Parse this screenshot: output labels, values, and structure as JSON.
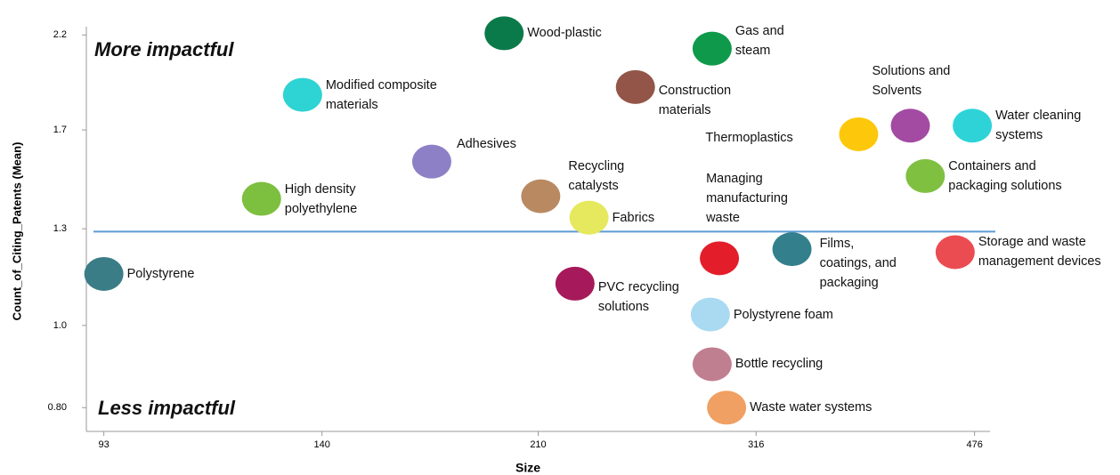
{
  "chart_data": {
    "type": "scatter",
    "xlabel": "Size",
    "ylabel": "Count_of_Citing_Patents (Mean)",
    "annotations": [
      "More impactful",
      "Less impactful"
    ],
    "xscale": "log",
    "yscale": "log",
    "xlim": [
      90,
      490
    ],
    "xticks": [
      93,
      140,
      210,
      316,
      476
    ],
    "ylim": [
      0.75,
      2.25
    ],
    "yticks": [
      {
        "value": 0.8,
        "label": "0.80"
      },
      {
        "value": 1,
        "label": "1.0"
      },
      1.3,
      1.7,
      2.2
    ],
    "reference_line": {
      "value": 1.29,
      "color": "#5b9bd5"
    },
    "points": [
      {
        "label": "Polystyrene",
        "x": 93,
        "y": 1.15,
        "color": "#3a7d86"
      },
      {
        "label": "High density\npolyethylene",
        "x": 125,
        "y": 1.41,
        "color": "#7dbf3f"
      },
      {
        "label": "Modified composite\nmaterials",
        "x": 135,
        "y": 1.87,
        "color": "#2ed3d3"
      },
      {
        "label": "Adhesives",
        "x": 172,
        "y": 1.56,
        "color": "#8e80c6"
      },
      {
        "label": "Wood-plastic",
        "x": 197,
        "y": 2.21,
        "color": "#0b7a4a"
      },
      {
        "label": "Recycling\ncatalysts",
        "x": 211,
        "y": 1.42,
        "color": "#b98a62"
      },
      {
        "label": "Fabrics",
        "x": 231,
        "y": 1.34,
        "color": "#e6e85d"
      },
      {
        "label": "PVC recycling\nsolutions",
        "x": 225,
        "y": 1.12,
        "color": "#a6195a"
      },
      {
        "label": "Construction\nmaterials",
        "x": 252,
        "y": 1.91,
        "color": "#935548"
      },
      {
        "label": "Gas and\nsteam",
        "x": 291,
        "y": 2.12,
        "color": "#0e9a4a"
      },
      {
        "label": "Managing\nmanufacturing\nwaste",
        "x": 295,
        "y": 1.2,
        "color": "#e31e2a"
      },
      {
        "label": "Polystyrene foam",
        "x": 290,
        "y": 1.03,
        "color": "#a9daf2"
      },
      {
        "label": "Bottle recycling",
        "x": 291,
        "y": 0.9,
        "color": "#c07f90"
      },
      {
        "label": "Waste water systems",
        "x": 299,
        "y": 0.8,
        "color": "#f0a062"
      },
      {
        "label": "Films,\ncoatings, and\npackaging",
        "x": 338,
        "y": 1.23,
        "color": "#347f8c"
      },
      {
        "label": "Thermoplastics",
        "x": 383,
        "y": 1.68,
        "color": "#fdc80c"
      },
      {
        "label": "Solutions and\nSolvents",
        "x": 422,
        "y": 1.72,
        "color": "#a34aa3"
      },
      {
        "label": "Water cleaning\nsystems",
        "x": 474,
        "y": 1.72,
        "color": "#2ed3d8"
      },
      {
        "label": "Containers and\npackaging solutions",
        "x": 434,
        "y": 1.5,
        "color": "#80c041"
      },
      {
        "label": "Storage and waste\nmanagement devices",
        "x": 459,
        "y": 1.22,
        "color": "#ea4c52"
      }
    ]
  }
}
